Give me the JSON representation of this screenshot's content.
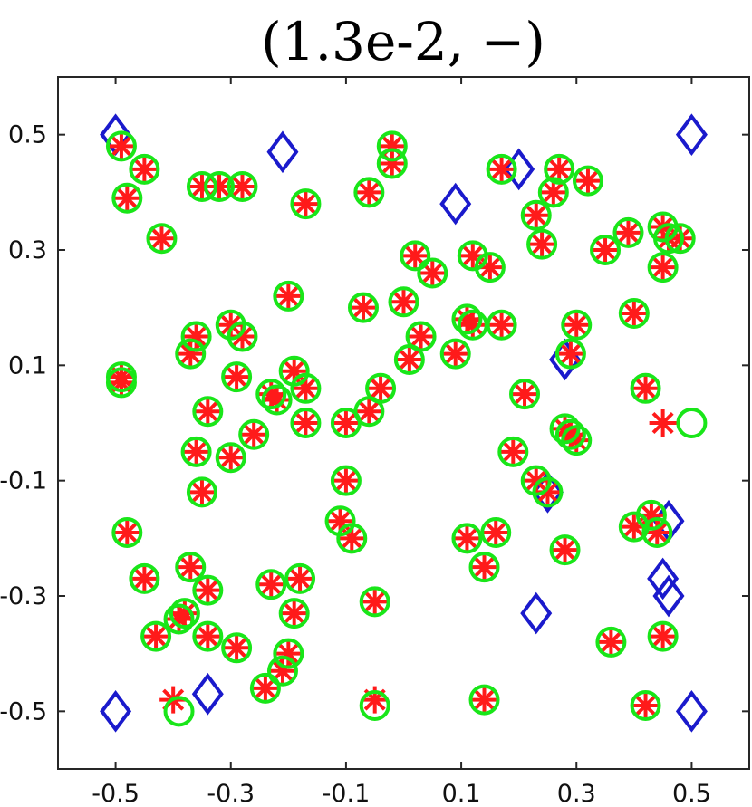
{
  "chart_data": {
    "type": "scatter",
    "title": "(1.3e-2, −)",
    "xlabel": "",
    "ylabel": "",
    "xlim": [
      -0.6,
      0.6
    ],
    "ylim": [
      -0.6,
      0.6
    ],
    "xticks": [
      -0.5,
      -0.3,
      -0.1,
      0.1,
      0.3,
      0.5
    ],
    "yticks": [
      0.5,
      0.3,
      0.1,
      -0.1,
      -0.3,
      -0.5
    ],
    "xtick_labels": [
      "-0.5",
      "-0.3",
      "-0.1",
      "0.1",
      "0.3",
      "0.5"
    ],
    "ytick_labels": [
      "0.5",
      "0.3",
      "0.1",
      "-0.1",
      "-0.3",
      "-0.5"
    ],
    "grid": false,
    "colors": {
      "star": "#ff1a1a",
      "circle": "#19e619",
      "diamond": "#1a1acc",
      "axis": "#262626"
    },
    "series": [
      {
        "marker": "diamond",
        "points": [
          [
            -0.5,
            0.5
          ],
          [
            -0.21,
            0.47
          ],
          [
            0.09,
            0.38
          ],
          [
            0.2,
            0.44
          ],
          [
            0.5,
            0.5
          ],
          [
            0.28,
            0.11
          ],
          [
            0.25,
            -0.12
          ],
          [
            0.46,
            -0.17
          ],
          [
            0.45,
            -0.27
          ],
          [
            0.46,
            -0.3
          ],
          [
            0.23,
            -0.33
          ],
          [
            -0.5,
            -0.5
          ],
          [
            -0.34,
            -0.47
          ],
          [
            0.5,
            -0.5
          ]
        ]
      },
      {
        "marker": "star",
        "points": [
          [
            -0.49,
            0.48
          ],
          [
            -0.45,
            0.44
          ],
          [
            -0.48,
            0.39
          ],
          [
            -0.42,
            0.32
          ],
          [
            -0.35,
            0.41
          ],
          [
            -0.32,
            0.41
          ],
          [
            -0.28,
            0.41
          ],
          [
            -0.17,
            0.38
          ],
          [
            -0.02,
            0.48
          ],
          [
            -0.02,
            0.45
          ],
          [
            -0.06,
            0.4
          ],
          [
            0.17,
            0.44
          ],
          [
            0.27,
            0.44
          ],
          [
            0.32,
            0.42
          ],
          [
            0.26,
            0.4
          ],
          [
            0.23,
            0.36
          ],
          [
            0.24,
            0.31
          ],
          [
            0.02,
            0.29
          ],
          [
            0.12,
            0.29
          ],
          [
            0.05,
            0.26
          ],
          [
            0.15,
            0.27
          ],
          [
            0.35,
            0.3
          ],
          [
            0.39,
            0.33
          ],
          [
            0.45,
            0.34
          ],
          [
            0.46,
            0.32
          ],
          [
            0.48,
            0.32
          ],
          [
            0.45,
            0.27
          ],
          [
            -0.2,
            0.22
          ],
          [
            -0.07,
            0.2
          ],
          [
            0.0,
            0.21
          ],
          [
            0.11,
            0.18
          ],
          [
            0.12,
            0.17
          ],
          [
            0.17,
            0.17
          ],
          [
            0.03,
            0.15
          ],
          [
            0.3,
            0.17
          ],
          [
            0.4,
            0.19
          ],
          [
            -0.36,
            0.15
          ],
          [
            -0.3,
            0.17
          ],
          [
            -0.28,
            0.15
          ],
          [
            -0.37,
            0.12
          ],
          [
            -0.49,
            0.08
          ],
          [
            -0.49,
            0.07
          ],
          [
            -0.29,
            0.08
          ],
          [
            -0.19,
            0.09
          ],
          [
            -0.17,
            0.06
          ],
          [
            -0.23,
            0.05
          ],
          [
            -0.22,
            0.04
          ],
          [
            0.01,
            0.11
          ],
          [
            0.09,
            0.12
          ],
          [
            0.29,
            0.12
          ],
          [
            -0.34,
            0.02
          ],
          [
            -0.04,
            0.06
          ],
          [
            -0.06,
            0.02
          ],
          [
            0.21,
            0.05
          ],
          [
            0.42,
            0.06
          ],
          [
            -0.36,
            -0.05
          ],
          [
            -0.3,
            -0.06
          ],
          [
            -0.26,
            -0.02
          ],
          [
            -0.17,
            0.0
          ],
          [
            -0.1,
            0.0
          ],
          [
            0.28,
            -0.01
          ],
          [
            0.29,
            -0.02
          ],
          [
            0.3,
            -0.03
          ],
          [
            0.19,
            -0.05
          ],
          [
            0.45,
            0.0
          ],
          [
            -0.35,
            -0.12
          ],
          [
            -0.1,
            -0.1
          ],
          [
            0.23,
            -0.1
          ],
          [
            0.25,
            -0.12
          ],
          [
            -0.48,
            -0.19
          ],
          [
            -0.11,
            -0.17
          ],
          [
            -0.09,
            -0.2
          ],
          [
            0.11,
            -0.2
          ],
          [
            0.16,
            -0.19
          ],
          [
            0.4,
            -0.18
          ],
          [
            0.43,
            -0.16
          ],
          [
            0.44,
            -0.19
          ],
          [
            0.28,
            -0.22
          ],
          [
            0.14,
            -0.25
          ],
          [
            -0.45,
            -0.27
          ],
          [
            -0.37,
            -0.25
          ],
          [
            -0.34,
            -0.29
          ],
          [
            -0.23,
            -0.28
          ],
          [
            -0.18,
            -0.27
          ],
          [
            -0.19,
            -0.33
          ],
          [
            -0.05,
            -0.31
          ],
          [
            -0.38,
            -0.33
          ],
          [
            -0.39,
            -0.34
          ],
          [
            -0.43,
            -0.37
          ],
          [
            -0.34,
            -0.37
          ],
          [
            -0.29,
            -0.39
          ],
          [
            -0.2,
            -0.4
          ],
          [
            -0.21,
            -0.43
          ],
          [
            -0.24,
            -0.46
          ],
          [
            0.36,
            -0.38
          ],
          [
            0.45,
            -0.37
          ],
          [
            -0.4,
            -0.48
          ],
          [
            -0.05,
            -0.48
          ],
          [
            0.14,
            -0.48
          ],
          [
            0.42,
            -0.49
          ]
        ]
      },
      {
        "marker": "circle",
        "points": [
          [
            -0.49,
            0.48
          ],
          [
            -0.45,
            0.44
          ],
          [
            -0.48,
            0.39
          ],
          [
            -0.42,
            0.32
          ],
          [
            -0.35,
            0.41
          ],
          [
            -0.32,
            0.41
          ],
          [
            -0.28,
            0.41
          ],
          [
            -0.17,
            0.38
          ],
          [
            -0.02,
            0.48
          ],
          [
            -0.02,
            0.45
          ],
          [
            -0.06,
            0.4
          ],
          [
            0.17,
            0.44
          ],
          [
            0.27,
            0.44
          ],
          [
            0.32,
            0.42
          ],
          [
            0.26,
            0.4
          ],
          [
            0.23,
            0.36
          ],
          [
            0.24,
            0.31
          ],
          [
            0.02,
            0.29
          ],
          [
            0.12,
            0.29
          ],
          [
            0.05,
            0.26
          ],
          [
            0.15,
            0.27
          ],
          [
            0.35,
            0.3
          ],
          [
            0.39,
            0.33
          ],
          [
            0.45,
            0.34
          ],
          [
            0.46,
            0.32
          ],
          [
            0.48,
            0.32
          ],
          [
            0.45,
            0.27
          ],
          [
            -0.2,
            0.22
          ],
          [
            -0.07,
            0.2
          ],
          [
            0.0,
            0.21
          ],
          [
            0.11,
            0.18
          ],
          [
            0.12,
            0.17
          ],
          [
            0.17,
            0.17
          ],
          [
            0.03,
            0.15
          ],
          [
            0.3,
            0.17
          ],
          [
            0.4,
            0.19
          ],
          [
            -0.36,
            0.15
          ],
          [
            -0.3,
            0.17
          ],
          [
            -0.28,
            0.15
          ],
          [
            -0.37,
            0.12
          ],
          [
            -0.49,
            0.08
          ],
          [
            -0.49,
            0.07
          ],
          [
            -0.29,
            0.08
          ],
          [
            -0.19,
            0.09
          ],
          [
            -0.17,
            0.06
          ],
          [
            -0.23,
            0.05
          ],
          [
            -0.22,
            0.04
          ],
          [
            0.01,
            0.11
          ],
          [
            0.09,
            0.12
          ],
          [
            0.29,
            0.12
          ],
          [
            -0.34,
            0.02
          ],
          [
            -0.04,
            0.06
          ],
          [
            -0.06,
            0.02
          ],
          [
            0.21,
            0.05
          ],
          [
            0.42,
            0.06
          ],
          [
            -0.36,
            -0.05
          ],
          [
            -0.3,
            -0.06
          ],
          [
            -0.26,
            -0.02
          ],
          [
            -0.17,
            0.0
          ],
          [
            -0.1,
            0.0
          ],
          [
            0.28,
            -0.01
          ],
          [
            0.29,
            -0.02
          ],
          [
            0.3,
            -0.03
          ],
          [
            0.19,
            -0.05
          ],
          [
            0.5,
            0.0
          ],
          [
            -0.35,
            -0.12
          ],
          [
            -0.1,
            -0.1
          ],
          [
            0.23,
            -0.1
          ],
          [
            0.25,
            -0.12
          ],
          [
            -0.48,
            -0.19
          ],
          [
            -0.11,
            -0.17
          ],
          [
            -0.09,
            -0.2
          ],
          [
            0.11,
            -0.2
          ],
          [
            0.16,
            -0.19
          ],
          [
            0.4,
            -0.18
          ],
          [
            0.43,
            -0.16
          ],
          [
            0.44,
            -0.19
          ],
          [
            0.28,
            -0.22
          ],
          [
            0.14,
            -0.25
          ],
          [
            -0.45,
            -0.27
          ],
          [
            -0.37,
            -0.25
          ],
          [
            -0.34,
            -0.29
          ],
          [
            -0.23,
            -0.28
          ],
          [
            -0.18,
            -0.27
          ],
          [
            -0.19,
            -0.33
          ],
          [
            -0.05,
            -0.31
          ],
          [
            -0.38,
            -0.33
          ],
          [
            -0.39,
            -0.34
          ],
          [
            -0.43,
            -0.37
          ],
          [
            -0.34,
            -0.37
          ],
          [
            -0.29,
            -0.39
          ],
          [
            -0.2,
            -0.4
          ],
          [
            -0.21,
            -0.43
          ],
          [
            -0.24,
            -0.46
          ],
          [
            0.36,
            -0.38
          ],
          [
            0.45,
            -0.37
          ],
          [
            -0.39,
            -0.5
          ],
          [
            -0.05,
            -0.49
          ],
          [
            0.14,
            -0.48
          ],
          [
            0.42,
            -0.49
          ]
        ]
      }
    ]
  }
}
